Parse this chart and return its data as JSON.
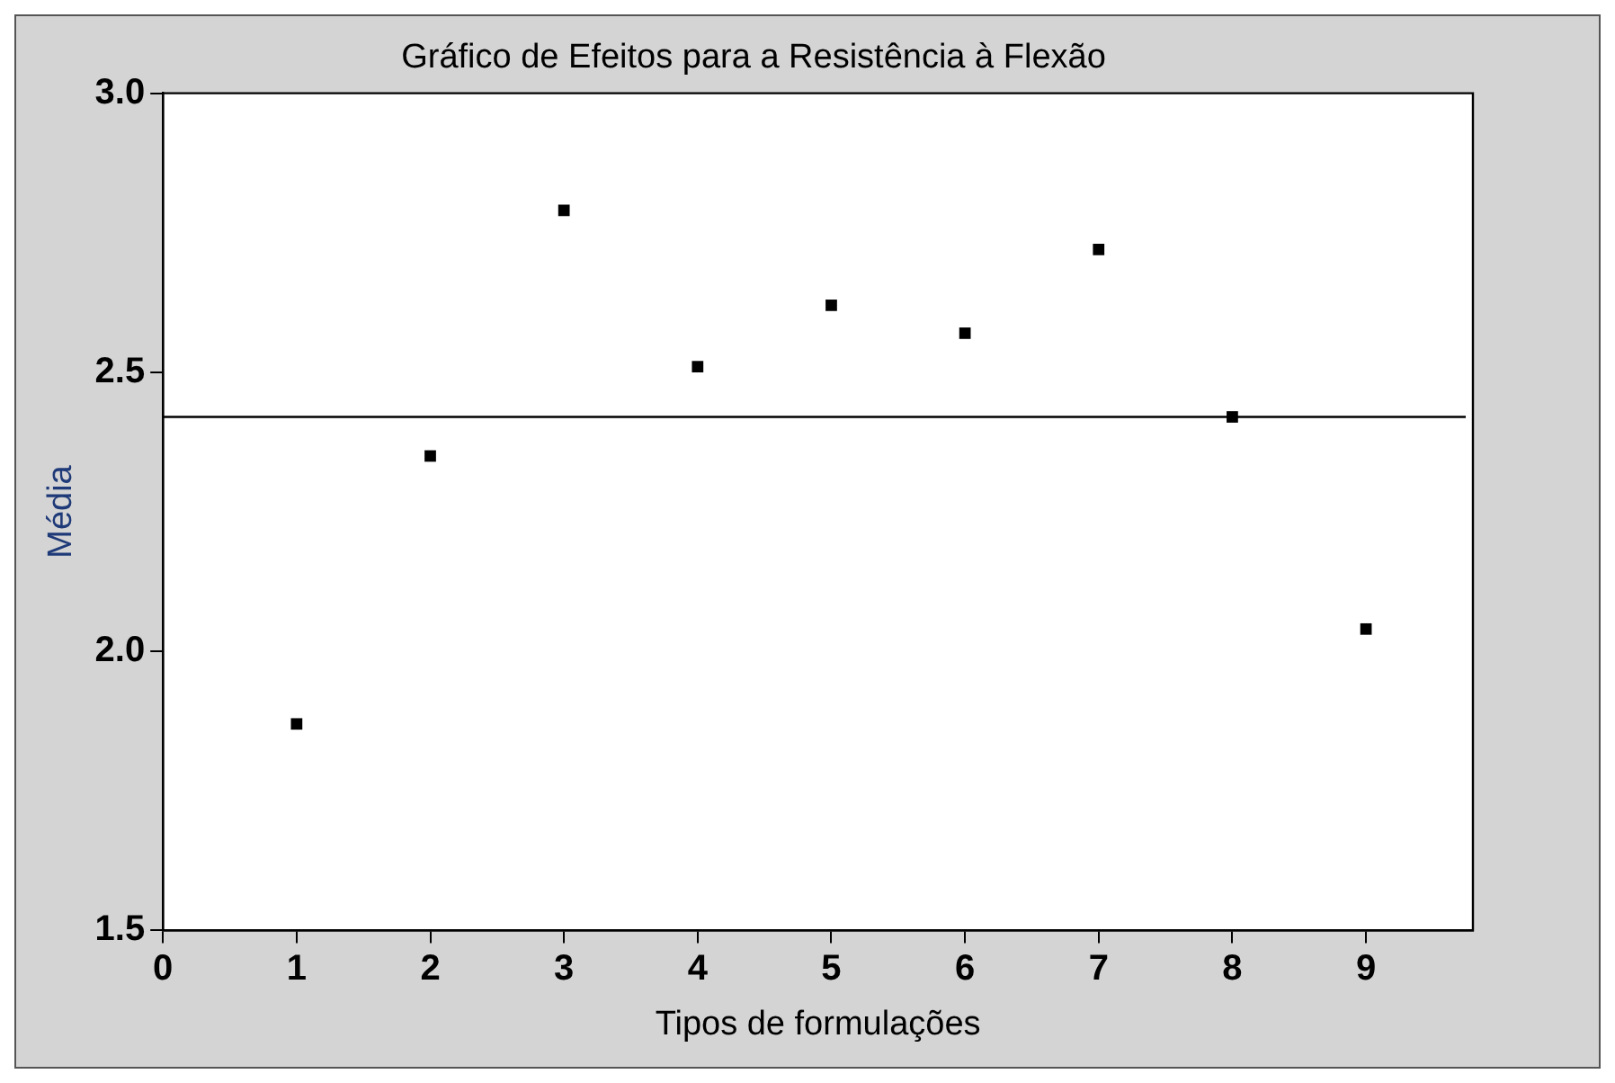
{
  "chart_data": {
    "type": "scatter",
    "title": "Gráfico de Efeitos para a Resistência à Flexão",
    "xlabel": "Tipos de formulações",
    "ylabel": "Média",
    "x": [
      1,
      2,
      3,
      4,
      5,
      6,
      7,
      8,
      9
    ],
    "series": [
      {
        "color": "#000000",
        "values": [
          1.87,
          2.35,
          2.79,
          2.51,
          2.62,
          2.57,
          2.72,
          2.42,
          2.04
        ]
      }
    ],
    "marker": "square",
    "grid": false,
    "legend": false,
    "xlim": [
      0,
      9.8
    ],
    "xticks": [
      0,
      1,
      2,
      3,
      4,
      5,
      6,
      7,
      8,
      9
    ],
    "ylim": [
      1.5,
      3.0
    ],
    "yticks": [
      1.5,
      {
        "value": 2,
        "label": "2.0"
      },
      2.5,
      {
        "value": 3,
        "label": "3.0"
      }
    ],
    "ref_lines": [
      {
        "axis": "y",
        "value": 2.42,
        "color": "#000000"
      }
    ]
  }
}
